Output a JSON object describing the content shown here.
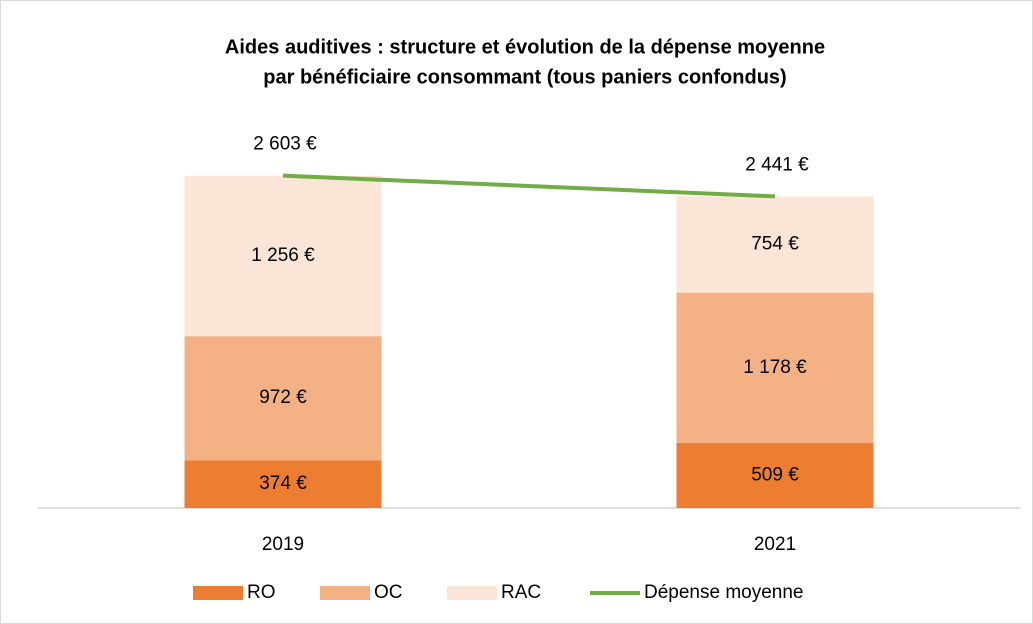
{
  "chart_data": {
    "type": "bar",
    "stacked": true,
    "title": [
      "Aides auditives : structure et évolution de la dépense moyenne",
      "par bénéficiaire consommant (tous paniers confondus)"
    ],
    "categories": [
      "2019",
      "2021"
    ],
    "ylim": [
      0,
      3000
    ],
    "series": [
      {
        "name": "RO",
        "color": "#ed7d31",
        "values": [
          374,
          509
        ],
        "value_labels": [
          "374 €",
          "509 €"
        ]
      },
      {
        "name": "OC",
        "color": "#f4b183",
        "values": [
          972,
          1178
        ],
        "value_labels": [
          "972 €",
          "1 178 €"
        ]
      },
      {
        "name": "RAC",
        "color": "#fbe5d6",
        "values": [
          1256,
          754
        ],
        "value_labels": [
          "1 256 €",
          "754 €"
        ]
      },
      {
        "name": "Dépense moyenne",
        "type": "line",
        "color": "#70ad47",
        "values": [
          2603,
          2441
        ],
        "value_labels": [
          "2 603 €",
          "2 441 €"
        ]
      }
    ],
    "legend": "bottom"
  }
}
